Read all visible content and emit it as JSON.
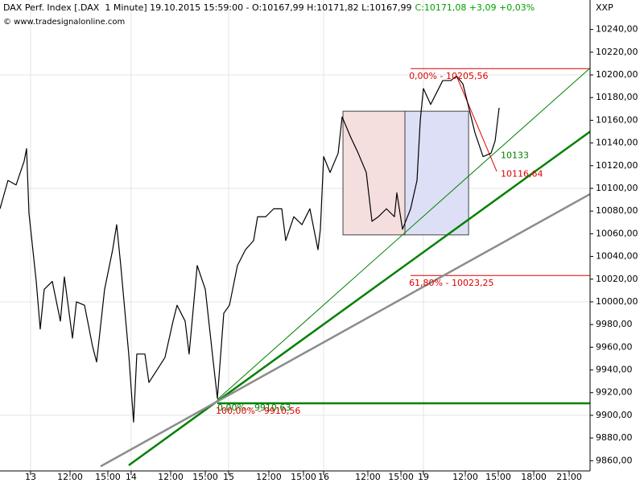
{
  "chart_data": {
    "type": "line",
    "title": "DAX Perf. Index [.DAX  1 Minute] 19.10.2015 15:59:00 - O:10167,99 H:10171,82 L:10167,99",
    "close_info": "C:10171,08 +3,09 +0,03%",
    "close_color": "#00a000",
    "copyright": "© www.tradesignalonline.com",
    "y_axis_label": "XXP",
    "x": [
      -2.53,
      -1.87,
      -1.2,
      -0.53,
      -0.33,
      -0.13,
      0.47,
      0.8,
      1.13,
      1.8,
      2.47,
      2.8,
      3.47,
      3.8,
      4.47,
      5.13,
      5.47,
      6.13,
      6.8,
      7.13,
      7.47,
      8.13,
      8.53,
      8.8,
      9.47,
      9.8,
      10.47,
      11.13,
      11.8,
      12.13,
      12.8,
      13.13,
      13.8,
      14.47,
      15.13,
      15.47,
      16,
      16.47,
      17.13,
      17.8,
      18.47,
      18.8,
      19.47,
      20.13,
      20.8,
      21.13,
      21.8,
      22.47,
      23.13,
      23.8,
      24,
      24.27,
      24.8,
      25.47,
      25.8,
      26.47,
      27.13,
      27.8,
      28.27,
      28.8,
      29.47,
      30.13,
      30.33,
      30.8,
      31.47,
      32,
      32.27,
      32.53,
      33.13,
      34.13,
      34.8,
      35.27,
      35.8,
      36.13,
      36.8,
      37.47,
      38.13,
      38.47,
      38.8
    ],
    "series": [
      {
        "color": "#000000",
        "values": [
          10082,
          10107,
          10103,
          10124,
          10135,
          10078,
          10018,
          9976,
          10011,
          10018,
          9983,
          10022,
          9968,
          10000,
          9997,
          9961,
          9947,
          10011,
          10046,
          10068,
          10032,
          9954,
          9894,
          9954,
          9954,
          9929,
          9940,
          9951,
          9983,
          9997,
          9983,
          9954,
          10032,
          10011,
          9947,
          9915,
          9990,
          9997,
          10032,
          10046,
          10054,
          10075,
          10075,
          10082,
          10082,
          10054,
          10075,
          10068,
          10082,
          10046,
          10064,
          10128,
          10114,
          10131,
          10163,
          10146,
          10131,
          10114,
          10071,
          10075,
          10082,
          10075,
          10096,
          10064,
          10082,
          10107,
          10160,
          10188,
          10174,
          10195,
          10195,
          10199,
          10192,
          10178,
          10149,
          10128,
          10131,
          10142,
          10171
        ]
      }
    ],
    "xlim": [
      -2.53,
      46.33
    ],
    "ylim": [
      9851,
      10266
    ],
    "xticks": [
      {
        "value": 0,
        "label": "13"
      },
      {
        "value": 3.27,
        "label": "12:00"
      },
      {
        "value": 6.4,
        "label": "15:00"
      },
      {
        "value": 8.33,
        "label": "14"
      },
      {
        "value": 11.6,
        "label": "12:00"
      },
      {
        "value": 14.47,
        "label": "15:00"
      },
      {
        "value": 16.4,
        "label": "15"
      },
      {
        "value": 19.73,
        "label": "12:00"
      },
      {
        "value": 22.6,
        "label": "15:00"
      },
      {
        "value": 24.27,
        "label": "16"
      },
      {
        "value": 27.93,
        "label": "12:00"
      },
      {
        "value": 30.67,
        "label": "15:00"
      },
      {
        "value": 32.53,
        "label": "19"
      },
      {
        "value": 36,
        "label": "12:00"
      },
      {
        "value": 38.73,
        "label": "15:00"
      },
      {
        "value": 41.67,
        "label": "18:00"
      },
      {
        "value": 44.6,
        "label": "21:00"
      }
    ],
    "yticks": [
      {
        "value": 9860,
        "label": "9860,00"
      },
      {
        "value": 9880,
        "label": "9880,00"
      },
      {
        "value": 9900,
        "label": "9900,00"
      },
      {
        "value": 9920,
        "label": "9920,00"
      },
      {
        "value": 9940,
        "label": "9940,00"
      },
      {
        "value": 9960,
        "label": "9960,00"
      },
      {
        "value": 9980,
        "label": "9980,00"
      },
      {
        "value": 10000,
        "label": "10000,00"
      },
      {
        "value": 10020,
        "label": "10020,00"
      },
      {
        "value": 10040,
        "label": "10040,00"
      },
      {
        "value": 10060,
        "label": "10060,00"
      },
      {
        "value": 10080,
        "label": "10080,00"
      },
      {
        "value": 10100,
        "label": "10100,00"
      },
      {
        "value": 10120,
        "label": "10120,00"
      },
      {
        "value": 10140,
        "label": "10140,00"
      },
      {
        "value": 10160,
        "label": "10160,00"
      },
      {
        "value": 10180,
        "label": "10180,00"
      },
      {
        "value": 10200,
        "label": "10200,00"
      },
      {
        "value": 10220,
        "label": "10220,00"
      },
      {
        "value": 10240,
        "label": "10240,00"
      }
    ],
    "grid": true,
    "rectangles": [
      {
        "x": [
          25.87,
          31
        ],
        "y": [
          10059,
          10168
        ],
        "fill": "#f5dede"
      },
      {
        "x": [
          31,
          36.27
        ],
        "y": [
          10059,
          10168
        ],
        "fill": "#dcdff5"
      }
    ],
    "trendlines": [
      {
        "x": [
          8.13,
          46.33
        ],
        "y": [
          9856,
          10150
        ],
        "color": "#008000",
        "width": 2.5
      },
      {
        "x": [
          15.47,
          46.33
        ],
        "y": [
          9914,
          10206
        ],
        "color": "#008000",
        "width": 1
      },
      {
        "x": [
          5.8,
          46.33
        ],
        "y": [
          9855,
          10095
        ],
        "color": "#8c8c8c",
        "width": 2.5
      },
      {
        "x": [
          35.27,
          38.6
        ],
        "y": [
          10199,
          10115
        ],
        "color": "#e00000",
        "width": 1
      }
    ],
    "levels": [
      {
        "value": 10205.56,
        "x": [
          31.47,
          46.33
        ],
        "color": "#e00000",
        "width": 1,
        "label": "0,00% - 10205,56",
        "label_color": "#e00000"
      },
      {
        "value": 10023.25,
        "x": [
          31.47,
          46.33
        ],
        "color": "#e00000",
        "width": 1,
        "label": "61,80% - 10023,25",
        "label_color": "#e00000"
      },
      {
        "value": 9910.56,
        "x": [
          15.47,
          46.33
        ],
        "color": "#008000",
        "width": 2.5,
        "label": "100,00% - 9910,56",
        "label_color": "#e00000"
      }
    ],
    "annotations": [
      {
        "text": "0,00% - 9910,63",
        "x": 15.47,
        "y": 9910.63,
        "color": "#008000"
      },
      {
        "text": "10133",
        "x": 38.93,
        "y": 10133,
        "color": "#008000"
      },
      {
        "text": "10116,64",
        "x": 38.93,
        "y": 10116.64,
        "color": "#e00000"
      }
    ]
  }
}
